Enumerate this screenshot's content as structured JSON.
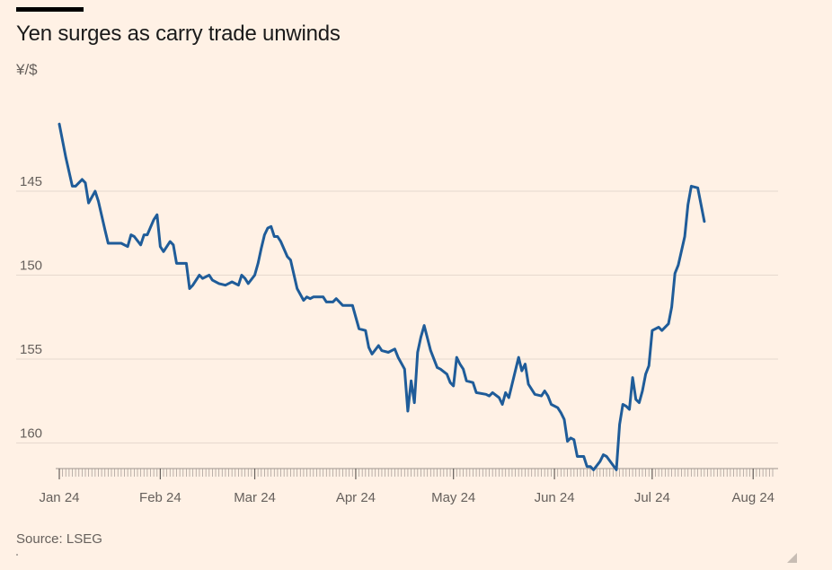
{
  "title": "Yen surges as carry trade unwinds",
  "unit": "¥/$",
  "source": "Source: LSEG",
  "colors": {
    "line": "#1F5C99",
    "background": "#FFF1E5",
    "grid": "#E6D9CE",
    "text": "#66605C"
  },
  "chart_data": {
    "type": "line",
    "title": "Yen surges as carry trade unwinds",
    "ylabel": "¥/$",
    "yaxis_inverted": true,
    "ylim": [
      141,
      161.7
    ],
    "yticks": [
      145,
      150,
      155,
      160
    ],
    "xticks": [
      {
        "date": "2024-01-01",
        "label": "Jan 24"
      },
      {
        "date": "2024-02-01",
        "label": "Feb 24"
      },
      {
        "date": "2024-03-01",
        "label": "Mar 24"
      },
      {
        "date": "2024-04-01",
        "label": "Apr 24"
      },
      {
        "date": "2024-05-01",
        "label": "May 24"
      },
      {
        "date": "2024-06-01",
        "label": "Jun 24"
      },
      {
        "date": "2024-07-01",
        "label": "Jul 24"
      },
      {
        "date": "2024-08-01",
        "label": "Aug 24"
      }
    ],
    "grid": true,
    "series": [
      {
        "values": [
          [
            "2024-01-01",
            141.0
          ],
          [
            "2024-01-03",
            143.0
          ],
          [
            "2024-01-05",
            144.7
          ],
          [
            "2024-01-06",
            144.7
          ],
          [
            "2024-01-08",
            144.3
          ],
          [
            "2024-01-09",
            144.5
          ],
          [
            "2024-01-10",
            145.7
          ],
          [
            "2024-01-12",
            145.0
          ],
          [
            "2024-01-13",
            145.6
          ],
          [
            "2024-01-15",
            147.3
          ],
          [
            "2024-01-16",
            148.1
          ],
          [
            "2024-01-19",
            148.1
          ],
          [
            "2024-01-20",
            148.1
          ],
          [
            "2024-01-22",
            148.3
          ],
          [
            "2024-01-23",
            147.6
          ],
          [
            "2024-01-24",
            147.7
          ],
          [
            "2024-01-26",
            148.2
          ],
          [
            "2024-01-27",
            147.6
          ],
          [
            "2024-01-28",
            147.6
          ],
          [
            "2024-01-30",
            146.7
          ],
          [
            "2024-01-31",
            146.4
          ],
          [
            "2024-02-01",
            148.3
          ],
          [
            "2024-02-02",
            148.6
          ],
          [
            "2024-02-04",
            148.0
          ],
          [
            "2024-02-05",
            148.2
          ],
          [
            "2024-02-06",
            149.3
          ],
          [
            "2024-02-09",
            149.3
          ],
          [
            "2024-02-10",
            150.8
          ],
          [
            "2024-02-11",
            150.6
          ],
          [
            "2024-02-13",
            150.0
          ],
          [
            "2024-02-14",
            150.2
          ],
          [
            "2024-02-16",
            150.0
          ],
          [
            "2024-02-17",
            150.3
          ],
          [
            "2024-02-19",
            150.5
          ],
          [
            "2024-02-21",
            150.6
          ],
          [
            "2024-02-23",
            150.4
          ],
          [
            "2024-02-25",
            150.6
          ],
          [
            "2024-02-26",
            150.0
          ],
          [
            "2024-02-27",
            150.2
          ],
          [
            "2024-02-28",
            150.5
          ],
          [
            "2024-03-01",
            150.0
          ],
          [
            "2024-03-02",
            149.3
          ],
          [
            "2024-03-03",
            148.4
          ],
          [
            "2024-03-04",
            147.6
          ],
          [
            "2024-03-05",
            147.2
          ],
          [
            "2024-03-06",
            147.1
          ],
          [
            "2024-03-07",
            147.7
          ],
          [
            "2024-03-08",
            147.7
          ],
          [
            "2024-03-09",
            148.0
          ],
          [
            "2024-03-11",
            148.9
          ],
          [
            "2024-03-12",
            149.1
          ],
          [
            "2024-03-14",
            150.8
          ],
          [
            "2024-03-16",
            151.5
          ],
          [
            "2024-03-17",
            151.3
          ],
          [
            "2024-03-18",
            151.4
          ],
          [
            "2024-03-19",
            151.3
          ],
          [
            "2024-03-22",
            151.3
          ],
          [
            "2024-03-23",
            151.6
          ],
          [
            "2024-03-25",
            151.6
          ],
          [
            "2024-03-26",
            151.4
          ],
          [
            "2024-03-28",
            151.8
          ],
          [
            "2024-03-31",
            151.8
          ],
          [
            "2024-04-02",
            153.2
          ],
          [
            "2024-04-04",
            153.3
          ],
          [
            "2024-04-05",
            154.3
          ],
          [
            "2024-04-06",
            154.7
          ],
          [
            "2024-04-08",
            154.2
          ],
          [
            "2024-04-09",
            154.5
          ],
          [
            "2024-04-11",
            154.6
          ],
          [
            "2024-04-13",
            154.4
          ],
          [
            "2024-04-14",
            154.9
          ],
          [
            "2024-04-16",
            155.6
          ],
          [
            "2024-04-17",
            158.1
          ],
          [
            "2024-04-18",
            156.3
          ],
          [
            "2024-04-19",
            157.6
          ],
          [
            "2024-04-20",
            154.6
          ],
          [
            "2024-04-21",
            153.7
          ],
          [
            "2024-04-22",
            153.0
          ],
          [
            "2024-04-24",
            154.5
          ],
          [
            "2024-04-26",
            155.5
          ],
          [
            "2024-04-27",
            155.6
          ],
          [
            "2024-04-29",
            155.9
          ],
          [
            "2024-04-30",
            156.4
          ],
          [
            "2024-05-01",
            156.6
          ],
          [
            "2024-05-02",
            154.9
          ],
          [
            "2024-05-03",
            155.3
          ],
          [
            "2024-05-04",
            155.6
          ],
          [
            "2024-05-05",
            156.3
          ],
          [
            "2024-05-07",
            156.4
          ],
          [
            "2024-05-08",
            157.0
          ],
          [
            "2024-05-11",
            157.1
          ],
          [
            "2024-05-12",
            157.2
          ],
          [
            "2024-05-13",
            157.0
          ],
          [
            "2024-05-15",
            157.3
          ],
          [
            "2024-05-16",
            157.7
          ],
          [
            "2024-05-17",
            157.0
          ],
          [
            "2024-05-18",
            157.3
          ],
          [
            "2024-05-21",
            154.9
          ],
          [
            "2024-05-22",
            155.7
          ],
          [
            "2024-05-23",
            155.3
          ],
          [
            "2024-05-24",
            156.5
          ],
          [
            "2024-05-26",
            157.1
          ],
          [
            "2024-05-28",
            157.2
          ],
          [
            "2024-05-29",
            156.9
          ],
          [
            "2024-05-30",
            157.2
          ],
          [
            "2024-05-31",
            157.7
          ],
          [
            "2024-06-02",
            157.9
          ],
          [
            "2024-06-03",
            158.2
          ],
          [
            "2024-06-04",
            158.6
          ],
          [
            "2024-06-05",
            159.9
          ],
          [
            "2024-06-06",
            159.7
          ],
          [
            "2024-06-07",
            159.8
          ],
          [
            "2024-06-08",
            160.8
          ],
          [
            "2024-06-10",
            160.8
          ],
          [
            "2024-06-11",
            161.4
          ],
          [
            "2024-06-12",
            161.4
          ],
          [
            "2024-06-13",
            161.6
          ],
          [
            "2024-06-15",
            161.1
          ],
          [
            "2024-06-16",
            160.7
          ],
          [
            "2024-06-17",
            160.8
          ],
          [
            "2024-06-20",
            161.6
          ],
          [
            "2024-06-21",
            158.9
          ],
          [
            "2024-06-22",
            157.7
          ],
          [
            "2024-06-23",
            157.8
          ],
          [
            "2024-06-24",
            158.0
          ],
          [
            "2024-06-25",
            156.1
          ],
          [
            "2024-06-26",
            157.4
          ],
          [
            "2024-06-27",
            157.6
          ],
          [
            "2024-06-28",
            156.9
          ],
          [
            "2024-06-29",
            155.9
          ],
          [
            "2024-06-30",
            155.4
          ],
          [
            "2024-07-01",
            153.3
          ],
          [
            "2024-07-03",
            153.1
          ],
          [
            "2024-07-04",
            153.3
          ],
          [
            "2024-07-06",
            152.9
          ],
          [
            "2024-07-07",
            151.9
          ],
          [
            "2024-07-08",
            149.9
          ],
          [
            "2024-07-09",
            149.4
          ],
          [
            "2024-07-11",
            147.7
          ],
          [
            "2024-07-12",
            145.8
          ],
          [
            "2024-07-13",
            144.7
          ],
          [
            "2024-07-15",
            144.8
          ],
          [
            "2024-07-17",
            146.8
          ]
        ]
      }
    ]
  }
}
